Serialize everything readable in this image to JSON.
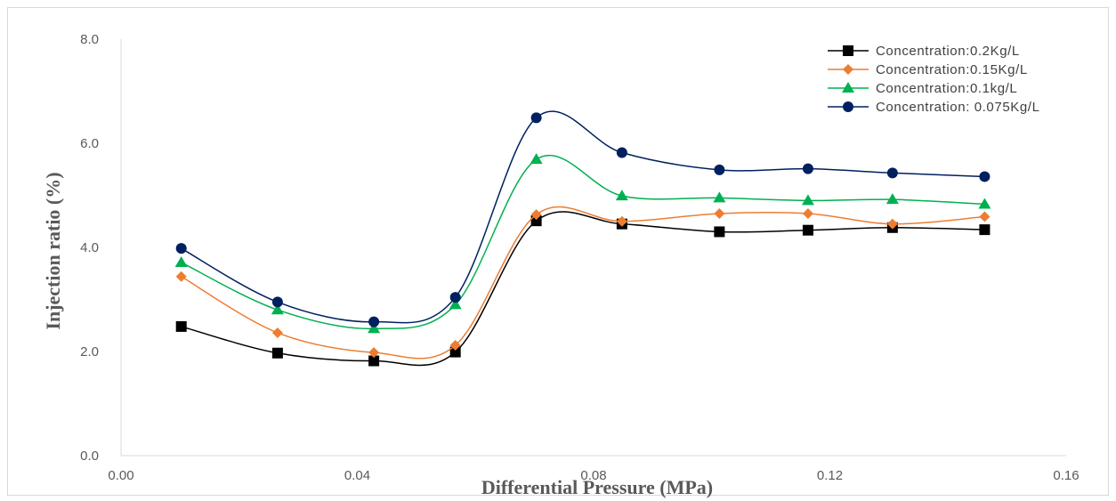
{
  "chart_data": {
    "type": "line",
    "xlabel": "Differential Pressure (MPa)",
    "ylabel": "Injection ratio (%)",
    "xlim": [
      0,
      0.16
    ],
    "ylim": [
      0,
      8
    ],
    "xticks": [
      "0.00",
      "0.04",
      "0.08",
      "0.12",
      "0.16"
    ],
    "yticks": [
      "0.0",
      "2.0",
      "4.0",
      "6.0",
      "8.0"
    ],
    "x": [
      0.0102,
      0.0265,
      0.0428,
      0.0566,
      0.0703,
      0.0848,
      0.1013,
      0.1163,
      0.1306,
      0.1462
    ],
    "legend_position": "top-right",
    "smooth": true,
    "series": [
      {
        "name": "Concentration:0.2Kg/L",
        "color": "#000000",
        "marker": "square",
        "values": [
          2.48,
          1.97,
          1.82,
          1.99,
          4.51,
          4.45,
          4.3,
          4.33,
          4.38,
          4.34
        ]
      },
      {
        "name": "Concentration:0.15Kg/L",
        "color": "#ed7d31",
        "marker": "diamond",
        "values": [
          3.44,
          2.36,
          1.98,
          2.12,
          4.63,
          4.5,
          4.65,
          4.65,
          4.45,
          4.59
        ]
      },
      {
        "name": "Concentration:0.1kg/L",
        "color": "#00b050",
        "marker": "triangle",
        "values": [
          3.71,
          2.8,
          2.44,
          2.9,
          5.69,
          4.99,
          4.95,
          4.9,
          4.92,
          4.83
        ]
      },
      {
        "name": "Concentration: 0.075Kg/L",
        "color": "#002060",
        "marker": "circle",
        "values": [
          3.98,
          2.95,
          2.57,
          3.04,
          6.49,
          5.82,
          5.49,
          5.51,
          5.43,
          5.36
        ]
      }
    ]
  }
}
